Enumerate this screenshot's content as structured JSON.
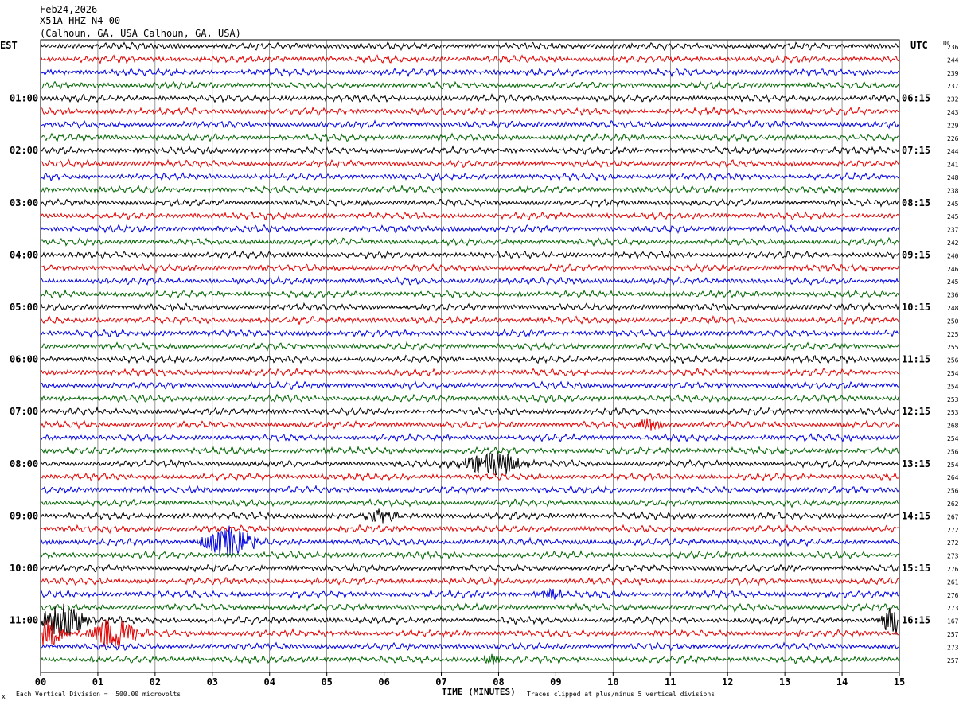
{
  "header": {
    "date": "Feb24,2026",
    "station": "X51A HHZ N4 00",
    "location": "(Calhoun, GA, USA Calhoun, GA, USA)"
  },
  "axis": {
    "left_tz": "EST",
    "right_tz": "UTC",
    "dc_label": "DC",
    "xlabel": "TIME (MINUTES)",
    "x_ticks": [
      "00",
      "01",
      "02",
      "03",
      "04",
      "05",
      "06",
      "07",
      "08",
      "09",
      "10",
      "11",
      "12",
      "13",
      "14",
      "15"
    ]
  },
  "footer": {
    "scale_note": "Each Vertical Division =  500.00 microvolts",
    "clip_note": "Traces clipped at plus/minus 5 vertical divisions",
    "corner_mark": "x"
  },
  "colors": {
    "cycle": [
      "#000000",
      "#e00000",
      "#0000e0",
      "#006400"
    ],
    "grid": "#000000"
  },
  "chart_data": {
    "type": "line",
    "title": "",
    "xlabel": "TIME (MINUTES)",
    "xlim": [
      0,
      15
    ],
    "traces_per_hour": 4,
    "minutes_per_trace": 15,
    "left_hour_labels": [
      "01:00",
      "02:00",
      "03:00",
      "04:00",
      "05:00",
      "06:00",
      "07:00",
      "08:00",
      "09:00",
      "10:00",
      "11:00"
    ],
    "right_hour_labels": [
      "06:15",
      "07:15",
      "08:15",
      "09:15",
      "10:15",
      "11:15",
      "12:15",
      "13:15",
      "14:15",
      "15:15",
      "16:15"
    ],
    "dc_offsets": [
      236,
      244,
      239,
      237,
      232,
      243,
      229,
      226,
      244,
      241,
      248,
      238,
      245,
      245,
      237,
      242,
      240,
      246,
      245,
      236,
      248,
      250,
      225,
      255,
      256,
      254,
      254,
      253,
      253,
      268,
      254,
      256,
      254,
      264,
      256,
      262,
      267,
      272,
      272,
      273,
      276,
      261,
      276,
      273,
      167,
      257,
      273,
      257
    ],
    "events": [
      {
        "trace": 29,
        "minute": 10.6,
        "width": 0.3,
        "amp": 1.2
      },
      {
        "trace": 32,
        "minute": 7.9,
        "width": 0.7,
        "amp": 2.4
      },
      {
        "trace": 36,
        "minute": 5.9,
        "width": 0.4,
        "amp": 1.2
      },
      {
        "trace": 38,
        "minute": 3.3,
        "width": 0.6,
        "amp": 3.0
      },
      {
        "trace": 42,
        "minute": 8.9,
        "width": 0.3,
        "amp": 1.0
      },
      {
        "trace": 44,
        "minute": 0.4,
        "width": 0.5,
        "amp": 3.4
      },
      {
        "trace": 44,
        "minute": 14.9,
        "width": 0.3,
        "amp": 3.0
      },
      {
        "trace": 45,
        "minute": 0.15,
        "width": 0.35,
        "amp": 2.6
      },
      {
        "trace": 45,
        "minute": 1.3,
        "width": 0.55,
        "amp": 3.0
      },
      {
        "trace": 47,
        "minute": 7.9,
        "width": 0.3,
        "amp": 1.0
      }
    ]
  }
}
